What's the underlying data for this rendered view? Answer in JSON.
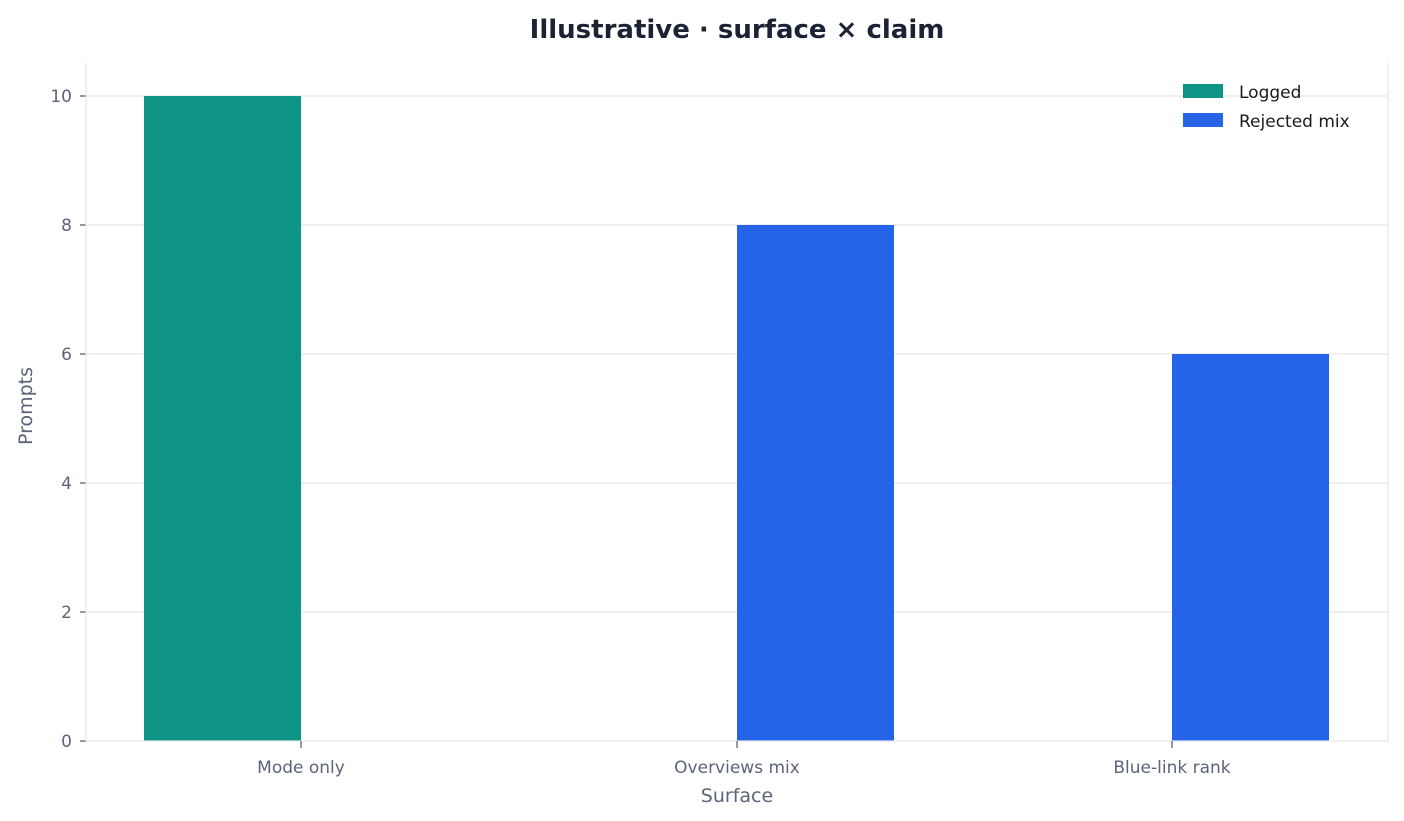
{
  "chart_data": {
    "type": "bar",
    "title": "Illustrative · surface × claim",
    "xlabel": "Surface",
    "ylabel": "Prompts",
    "categories": [
      "Mode only",
      "Overviews mix",
      "Blue-link rank"
    ],
    "series": [
      {
        "name": "Logged",
        "color": "#0e9484",
        "values": [
          10,
          0,
          0
        ]
      },
      {
        "name": "Rejected mix",
        "color": "#2563e8",
        "values": [
          0,
          8,
          6
        ]
      }
    ],
    "ylim": [
      0,
      10.5
    ],
    "yticks": [
      0,
      2,
      4,
      6,
      8,
      10
    ],
    "grid": "horizontal",
    "legend_position": "top-right"
  }
}
